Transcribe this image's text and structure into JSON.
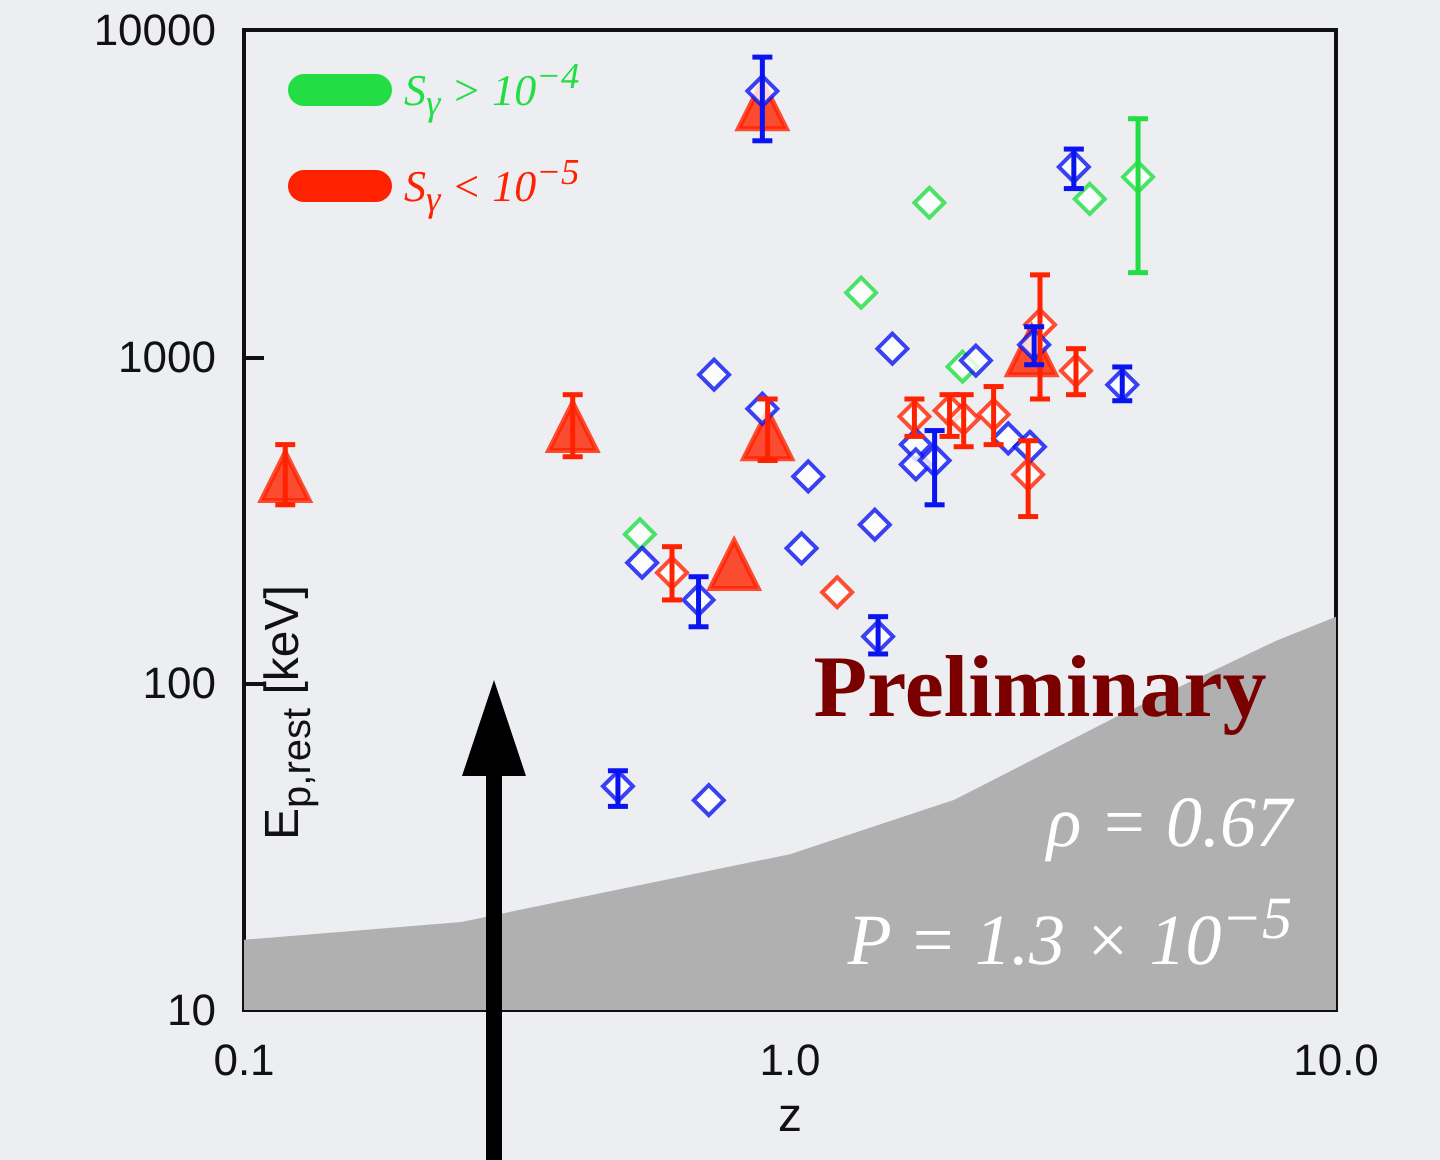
{
  "chart_data": {
    "type": "scatter",
    "xlabel": "z",
    "ylabel": "E$_{p,rest}$ [keV]",
    "annotations": [
      "Preliminary",
      "ρ = 0.67",
      "P = 1.3 × 10$^{−5}$"
    ],
    "log": "xy",
    "grid": false,
    "legend": "top left",
    "xlim": [
      0.1,
      10
    ],
    "ylim": [
      10,
      10000
    ],
    "xticks": [
      0.1,
      {
        "value": 1,
        "label": "1.0"
      },
      {
        "value": 10,
        "label": "10.0"
      }
    ],
    "yticks": [
      10,
      100,
      1000,
      10000
    ],
    "series": [
      {
        "type": "area",
        "color": "#b0b0b0",
        "x": [
          0.1,
          0.25,
          1.0,
          2.0,
          3.96,
          7.77,
          10
        ],
        "values": [
          16.4,
          18.6,
          30,
          44,
          79,
          135,
          160
        ]
      },
      {
        "name": "S$_{γ}$ > 10$^{−4}$",
        "color": "#22dd44",
        "marker": "diamond",
        "x": [
          0.531,
          1.35,
          1.8,
          3.54,
          4.34,
          2.07
        ],
        "values": [
          286,
          1570,
          2960,
          3040,
          3550,
          932
        ],
        "errors": [
          null,
          null,
          null,
          null,
          [
            1808,
            5350
          ],
          null
        ]
      },
      {
        "name": "S$_{γ}$ < 10$^{−5}$",
        "color": "#ff2200",
        "marker": "diamond",
        "x": [
          0.608,
          1.22,
          1.69,
          1.96,
          2.08,
          2.36,
          2.73,
          2.87,
          3.34
        ],
        "values": [
          218,
          190,
          656,
          684,
          646,
          665,
          436,
          1253,
          906
        ],
        "errors": [
          [
            180,
            262
          ],
          null,
          [
            570,
            742
          ],
          [
            570,
            765
          ],
          [
            530,
            765
          ],
          [
            538,
            810
          ],
          [
            324,
            553
          ],
          [
            742,
            1780
          ],
          [
            765,
            1058
          ]
        ]
      },
      {
        "color": "#ff2200",
        "marker": "triangle",
        "x": [
          0.119,
          0.4,
          0.91,
          0.89,
          0.79,
          2.77
        ],
        "values": [
          430,
          611,
          577,
          5900,
          231,
          1043
        ],
        "errors": [
          [
            352,
            538
          ],
          [
            494,
            765
          ],
          [
            481,
            742
          ],
          null,
          null,
          null
        ]
      },
      {
        "color": "#0a14f0",
        "marker": "diamond",
        "x": [
          0.89,
          0.726,
          0.89,
          1.08,
          0.536,
          0.68,
          1.05,
          0.484,
          0.71,
          1.43,
          1.45,
          3.31,
          1.54,
          2.19,
          4.06,
          2.8,
          1.7,
          1.7,
          1.84,
          2.51,
          2.75
        ],
        "values": [
          6500,
          881,
          693,
          430,
          234,
          180,
          259,
          48.4,
          43.9,
          306,
          139,
          3810,
          1058,
          973,
          820,
          1088,
          538,
          468,
          481,
          562,
          530
        ],
        "errors": [
          [
            4580,
            8260
          ],
          null,
          null,
          null,
          null,
          [
            149,
            212
          ],
          null,
          [
            42,
            54
          ],
          null,
          null,
          [
            123,
            160
          ],
          [
            3270,
            4320
          ],
          null,
          null,
          [
            733,
            930
          ],
          [
            945,
            1235
          ],
          null,
          null,
          [
            352,
            594
          ],
          null,
          null
        ]
      }
    ]
  }
}
